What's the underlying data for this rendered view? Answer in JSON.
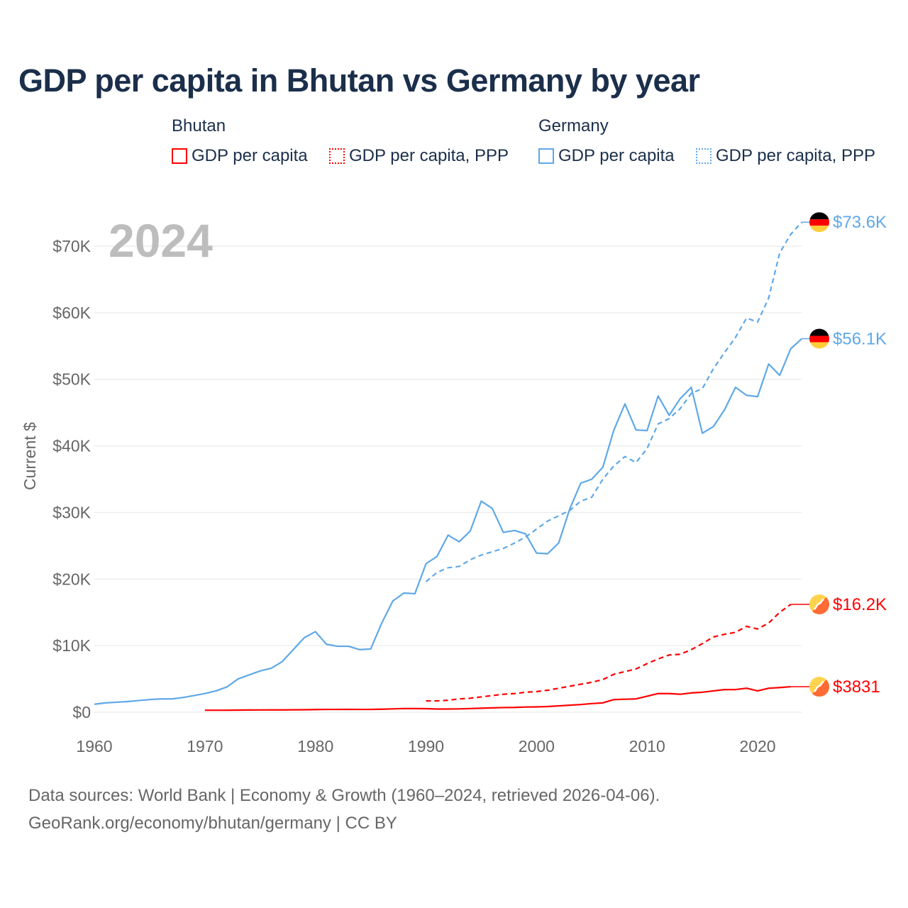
{
  "title": "GDP per capita in Bhutan vs Germany by year",
  "legend": {
    "groups": [
      {
        "name": "Bhutan",
        "items": [
          "GDP per capita",
          "GDP per capita, PPP"
        ],
        "color": "#ff0000"
      },
      {
        "name": "Germany",
        "items": [
          "GDP per capita",
          "GDP per capita, PPP"
        ],
        "color": "#5fa8e8"
      }
    ]
  },
  "footer": {
    "line1": "Data sources: World Bank | Economy & Growth (1960–2024, retrieved 2026-04-06).",
    "line2": "GeoRank.org/economy/bhutan/germany | CC BY"
  },
  "chart_data": {
    "type": "line",
    "title": "GDP per capita in Bhutan vs Germany by year",
    "ylabel": "Current $",
    "xlabel": "",
    "year_label": "2024",
    "xlim": [
      1960,
      2024
    ],
    "ylim": [
      0,
      70000
    ],
    "x_ticks": [
      "1960",
      "1970",
      "1980",
      "1990",
      "2000",
      "2010",
      "2020"
    ],
    "y_ticks": [
      {
        "value": 0,
        "label": "$0"
      },
      {
        "value": 10000,
        "label": "$10K"
      },
      {
        "value": 20000,
        "label": "$20K"
      },
      {
        "value": 30000,
        "label": "$30K"
      },
      {
        "value": 40000,
        "label": "$40K"
      },
      {
        "value": 50000,
        "label": "$50K"
      },
      {
        "value": 60000,
        "label": "$60K"
      },
      {
        "value": 70000,
        "label": "$70K"
      }
    ],
    "grid": true,
    "series": [
      {
        "name": "Germany GDP per capita",
        "country": "Germany",
        "color": "#5fa8e8",
        "dash": false,
        "end_label": "$56.1K",
        "start": 1960,
        "values": [
          1.2,
          1.4,
          1.5,
          1.6,
          1.75,
          1.9,
          2.0,
          2.0,
          2.2,
          2.5,
          2.8,
          3.2,
          3.8,
          5.0,
          5.6,
          6.2,
          6.6,
          7.6,
          9.4,
          11.2,
          12.1,
          10.2,
          9.9,
          9.9,
          9.4,
          9.5,
          13.4,
          16.7,
          17.9,
          17.8,
          22.3,
          23.4,
          26.6,
          25.6,
          27.2,
          31.7,
          30.6,
          27.0,
          27.3,
          26.8,
          23.9,
          23.8,
          25.4,
          30.5,
          34.4,
          35.0,
          36.8,
          42.4,
          46.3,
          42.4,
          42.3,
          47.5,
          44.6,
          47.1,
          48.8,
          41.9,
          42.9,
          45.4,
          48.8,
          47.6,
          47.4,
          52.3,
          50.6,
          54.6,
          56.1
        ]
      },
      {
        "name": "Germany GDP per capita, PPP",
        "country": "Germany",
        "color": "#5fa8e8",
        "dash": true,
        "end_label": "$73.6K",
        "start": 1990,
        "values": [
          19.6,
          21.0,
          21.7,
          21.9,
          22.9,
          23.6,
          24.1,
          24.6,
          25.4,
          26.3,
          27.5,
          28.7,
          29.5,
          30.3,
          31.7,
          32.3,
          35.0,
          37.0,
          38.4,
          37.5,
          39.6,
          43.3,
          44.1,
          45.6,
          47.9,
          48.6,
          51.6,
          54.0,
          56.3,
          59.2,
          58.6,
          62.2,
          69.0,
          71.8,
          73.6
        ]
      },
      {
        "name": "Bhutan GDP per capita",
        "country": "Bhutan",
        "color": "#ff0000",
        "dash": false,
        "end_label": "$3831",
        "start": 1970,
        "values": [
          0.3,
          0.3,
          0.3,
          0.32,
          0.33,
          0.34,
          0.35,
          0.35,
          0.36,
          0.37,
          0.4,
          0.42,
          0.42,
          0.43,
          0.42,
          0.42,
          0.45,
          0.5,
          0.55,
          0.55,
          0.53,
          0.48,
          0.48,
          0.5,
          0.55,
          0.6,
          0.65,
          0.7,
          0.72,
          0.78,
          0.8,
          0.85,
          0.95,
          1.05,
          1.15,
          1.3,
          1.4,
          1.9,
          1.95,
          2.0,
          2.4,
          2.8,
          2.8,
          2.7,
          2.9,
          3.0,
          3.2,
          3.4,
          3.4,
          3.6,
          3.2,
          3.6,
          3.7,
          3.83
        ]
      },
      {
        "name": "Bhutan GDP per capita, PPP",
        "country": "Bhutan",
        "color": "#ff0000",
        "dash": true,
        "end_label": "$16.2K",
        "start": 1990,
        "values": [
          1.7,
          1.7,
          1.8,
          2.0,
          2.1,
          2.3,
          2.5,
          2.7,
          2.8,
          3.0,
          3.1,
          3.3,
          3.6,
          3.9,
          4.2,
          4.5,
          4.9,
          5.7,
          6.1,
          6.5,
          7.3,
          8.0,
          8.6,
          8.7,
          9.4,
          10.3,
          11.3,
          11.7,
          12.0,
          12.9,
          12.5,
          13.4,
          15.0,
          16.2
        ]
      }
    ],
    "value_unit": "thousand USD"
  }
}
